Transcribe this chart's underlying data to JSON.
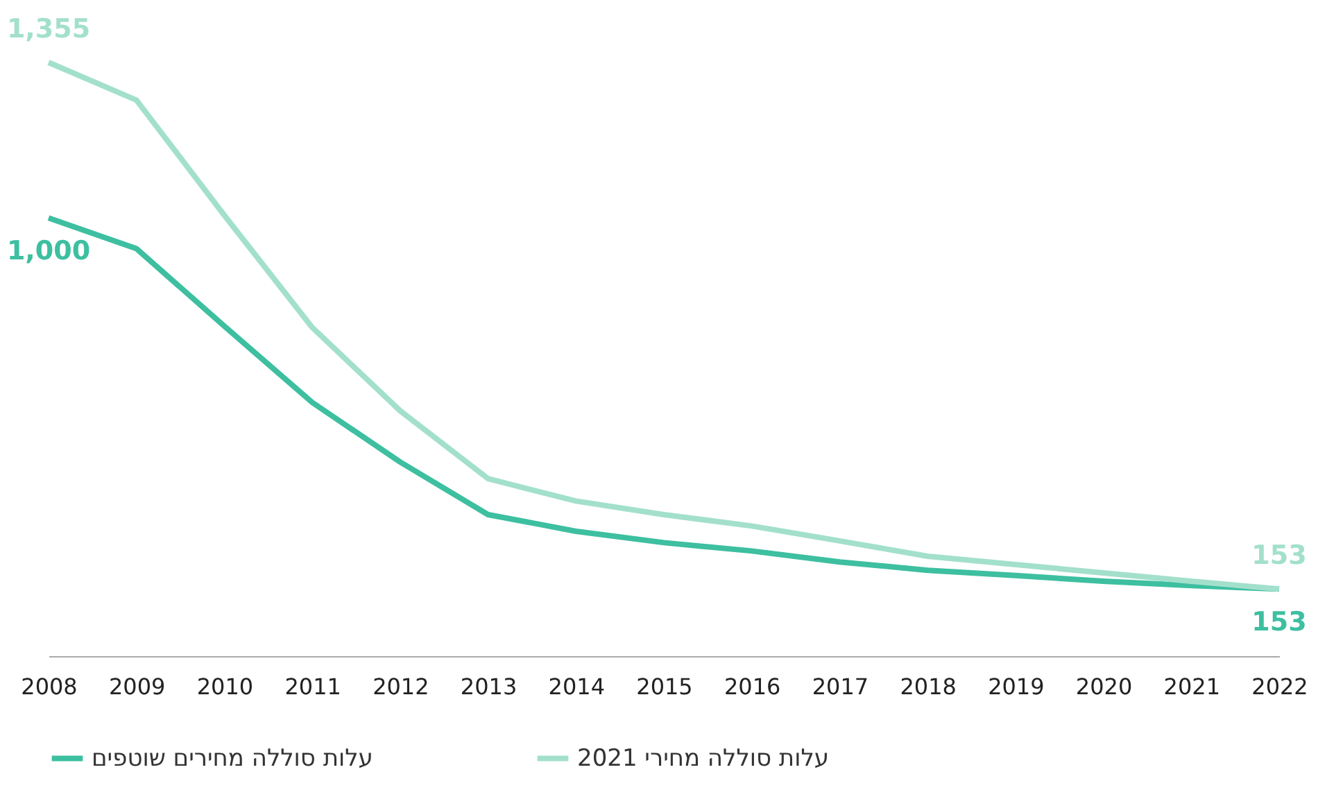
{
  "chart_data": {
    "type": "line",
    "categories": [
      "2008",
      "2009",
      "2010",
      "2011",
      "2012",
      "2013",
      "2014",
      "2015",
      "2016",
      "2017",
      "2018",
      "2019",
      "2020",
      "2021",
      "2022"
    ],
    "series": [
      {
        "name": "עלות סוללה מחירים שוטפים",
        "color": "#3dbfa0",
        "values": [
          1000,
          930,
          753,
          579,
          443,
          323,
          285,
          259,
          240,
          215,
          196,
          184,
          171,
          161,
          153
        ],
        "value_labels": [
          "1,000",
          null,
          null,
          null,
          null,
          null,
          null,
          null,
          null,
          null,
          null,
          null,
          null,
          null,
          "153"
        ]
      },
      {
        "name": "עלות סוללה מחירי 2021",
        "color": "#a3e0cc",
        "values": [
          1355,
          1269,
          1006,
          750,
          560,
          405,
          354,
          323,
          297,
          263,
          228,
          209,
          190,
          171,
          153
        ],
        "value_labels": [
          "1,355",
          null,
          null,
          null,
          null,
          null,
          null,
          null,
          null,
          null,
          null,
          null,
          null,
          null,
          "153"
        ]
      }
    ],
    "tick_labels": "x",
    "grid": false,
    "legend": "bottom",
    "marker": "none",
    "line_style": "solid"
  }
}
